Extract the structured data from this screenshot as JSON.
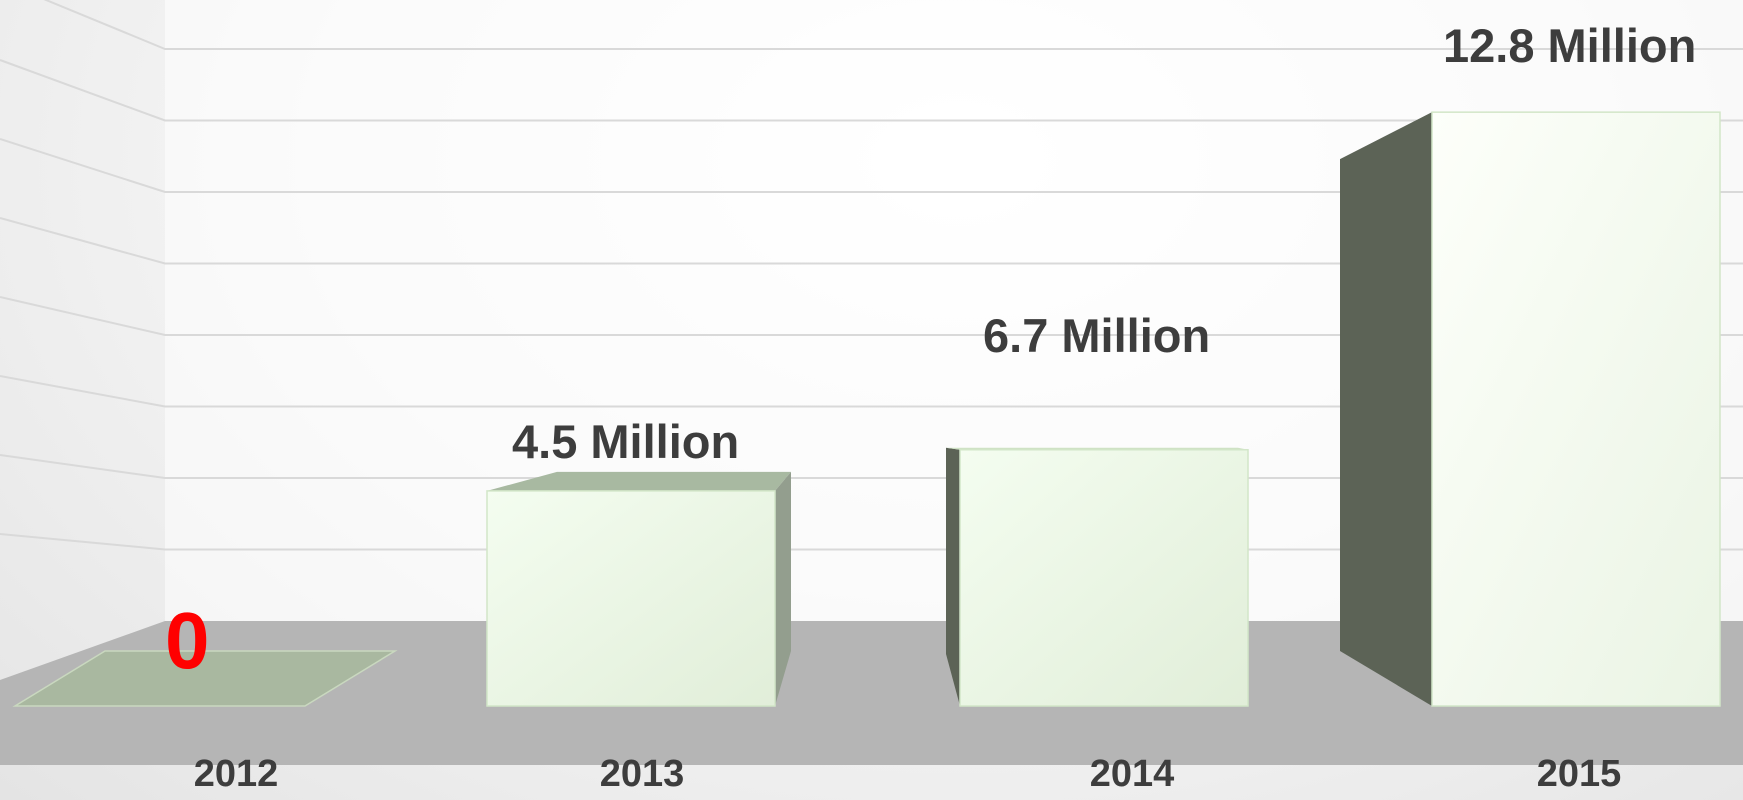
{
  "chart_data": {
    "type": "bar",
    "style": "3d",
    "title": "",
    "xlabel": "",
    "ylabel": "",
    "categories": [
      "2012",
      "2013",
      "2014",
      "2015"
    ],
    "series": [
      {
        "values": [
          0,
          4.5,
          6.7,
          12.8
        ]
      }
    ],
    "data_labels": [
      "0",
      "4.5  Million",
      "6.7  Million",
      "12.8  Million"
    ],
    "ylim": [
      0,
      14
    ],
    "grid": true,
    "legend": "none",
    "colors": {
      "bar_face": "#e3f1da",
      "bar_side": "#5c6356",
      "zero_bar": "#a9b8a0",
      "floor": "#b5b5b5",
      "zero_label": "#ff0000",
      "label_text": "#3d3d3d"
    }
  }
}
